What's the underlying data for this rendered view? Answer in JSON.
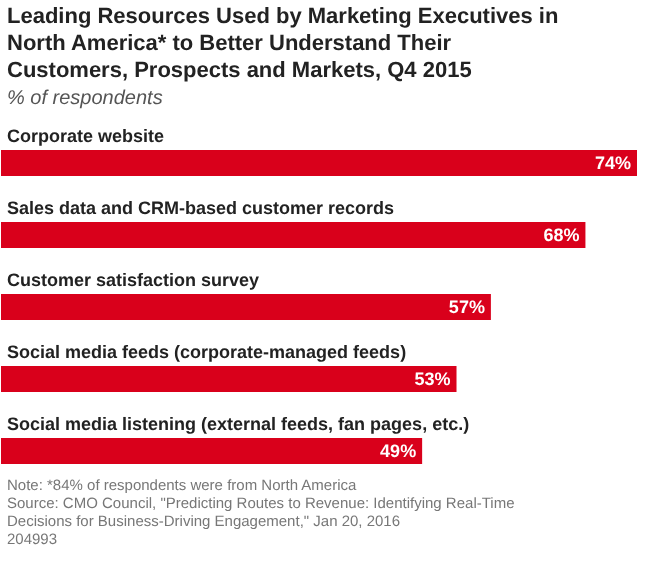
{
  "chart_data": {
    "type": "bar",
    "orientation": "horizontal",
    "title": "Leading Resources Used by Marketing Executives in North America* to Better Understand Their Customers, Prospects and Markets, Q4 2015",
    "subtitle": "% of respondents",
    "categories": [
      "Corporate website",
      "Sales data and CRM-based customer records",
      "Customer satisfaction survey",
      "Social media feeds (corporate-managed feeds)",
      "Social media listening (external feeds, fan pages, etc.)"
    ],
    "values": [
      74,
      68,
      57,
      53,
      49
    ],
    "color": "#d9001b",
    "value_labels": [
      "74%",
      "68%",
      "57%",
      "53%",
      "49%"
    ],
    "annotations": [
      "Note: *84% of respondents were from North America",
      "Source: CMO Council, \"Predicting Routes to Revenue: Identifying Real-Time Decisions for Business-Driving Engagement,\" Jan 20, 2016",
      "204993"
    ]
  }
}
